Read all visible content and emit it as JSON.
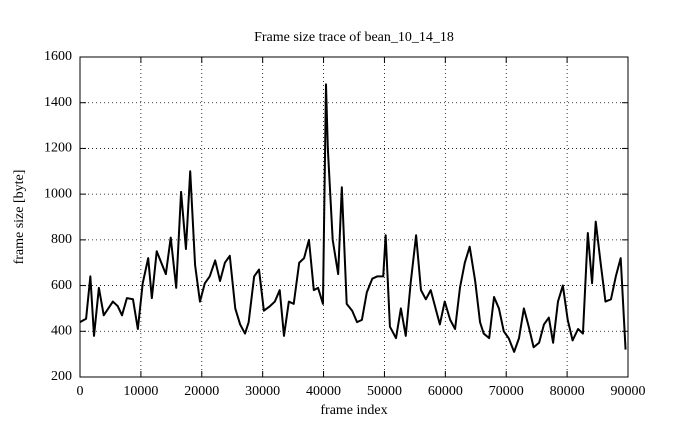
{
  "chart_data": {
    "type": "line",
    "title": "Frame size trace of bean_10_14_18",
    "x_label": "frame index",
    "y_label": "frame size [byte]",
    "x": [
      0,
      1000,
      1700,
      2300,
      3100,
      3900,
      5400,
      6200,
      6900,
      7700,
      8700,
      9500,
      10300,
      11200,
      11800,
      12600,
      14100,
      14900,
      15800,
      16600,
      17400,
      18100,
      18900,
      19700,
      20500,
      21300,
      22200,
      23000,
      23800,
      24600,
      25500,
      26300,
      27100,
      27700,
      28600,
      29400,
      30200,
      31200,
      32000,
      32800,
      33500,
      34300,
      35100,
      36000,
      36800,
      37600,
      38400,
      39100,
      39900,
      40400,
      40700,
      41500,
      42400,
      43000,
      43800,
      44700,
      45500,
      46300,
      47100,
      48000,
      48800,
      49800,
      50200,
      50900,
      51900,
      52700,
      53500,
      54300,
      55200,
      56000,
      56800,
      57600,
      58500,
      59100,
      59900,
      60800,
      61600,
      62400,
      63200,
      64000,
      64900,
      65700,
      66300,
      67200,
      68000,
      68800,
      69600,
      70400,
      71300,
      72100,
      72900,
      73700,
      74500,
      75400,
      76200,
      77000,
      77700,
      78500,
      79300,
      80100,
      80900,
      81800,
      82600,
      83400,
      84100,
      84700,
      85500,
      86300,
      87200,
      88000,
      88800,
      89600
    ],
    "series": [
      {
        "name": "frame size",
        "color": "#000000",
        "values": [
          440,
          455,
          640,
          380,
          590,
          470,
          530,
          510,
          470,
          545,
          540,
          410,
          610,
          720,
          545,
          750,
          650,
          810,
          590,
          1010,
          760,
          1100,
          690,
          530,
          610,
          640,
          710,
          620,
          700,
          730,
          500,
          430,
          390,
          440,
          640,
          670,
          490,
          510,
          530,
          580,
          380,
          530,
          520,
          700,
          720,
          800,
          580,
          590,
          520,
          1480,
          1200,
          800,
          650,
          1030,
          520,
          490,
          440,
          450,
          570,
          630,
          640,
          640,
          820,
          420,
          370,
          500,
          380,
          610,
          820,
          580,
          540,
          580,
          490,
          430,
          530,
          450,
          410,
          590,
          700,
          770,
          620,
          440,
          390,
          370,
          550,
          500,
          400,
          370,
          310,
          370,
          500,
          420,
          330,
          350,
          430,
          460,
          350,
          530,
          600,
          450,
          360,
          410,
          390,
          830,
          610,
          880,
          700,
          530,
          540,
          640,
          720,
          320
        ]
      }
    ],
    "xlim": [
      0,
      90000
    ],
    "xticks": [
      0,
      10000,
      20000,
      30000,
      40000,
      50000,
      60000,
      70000,
      80000,
      90000
    ],
    "ylim": [
      200,
      1600
    ],
    "yticks": [
      200,
      400,
      600,
      800,
      1000,
      1200,
      1400,
      1600
    ],
    "grid": true
  }
}
